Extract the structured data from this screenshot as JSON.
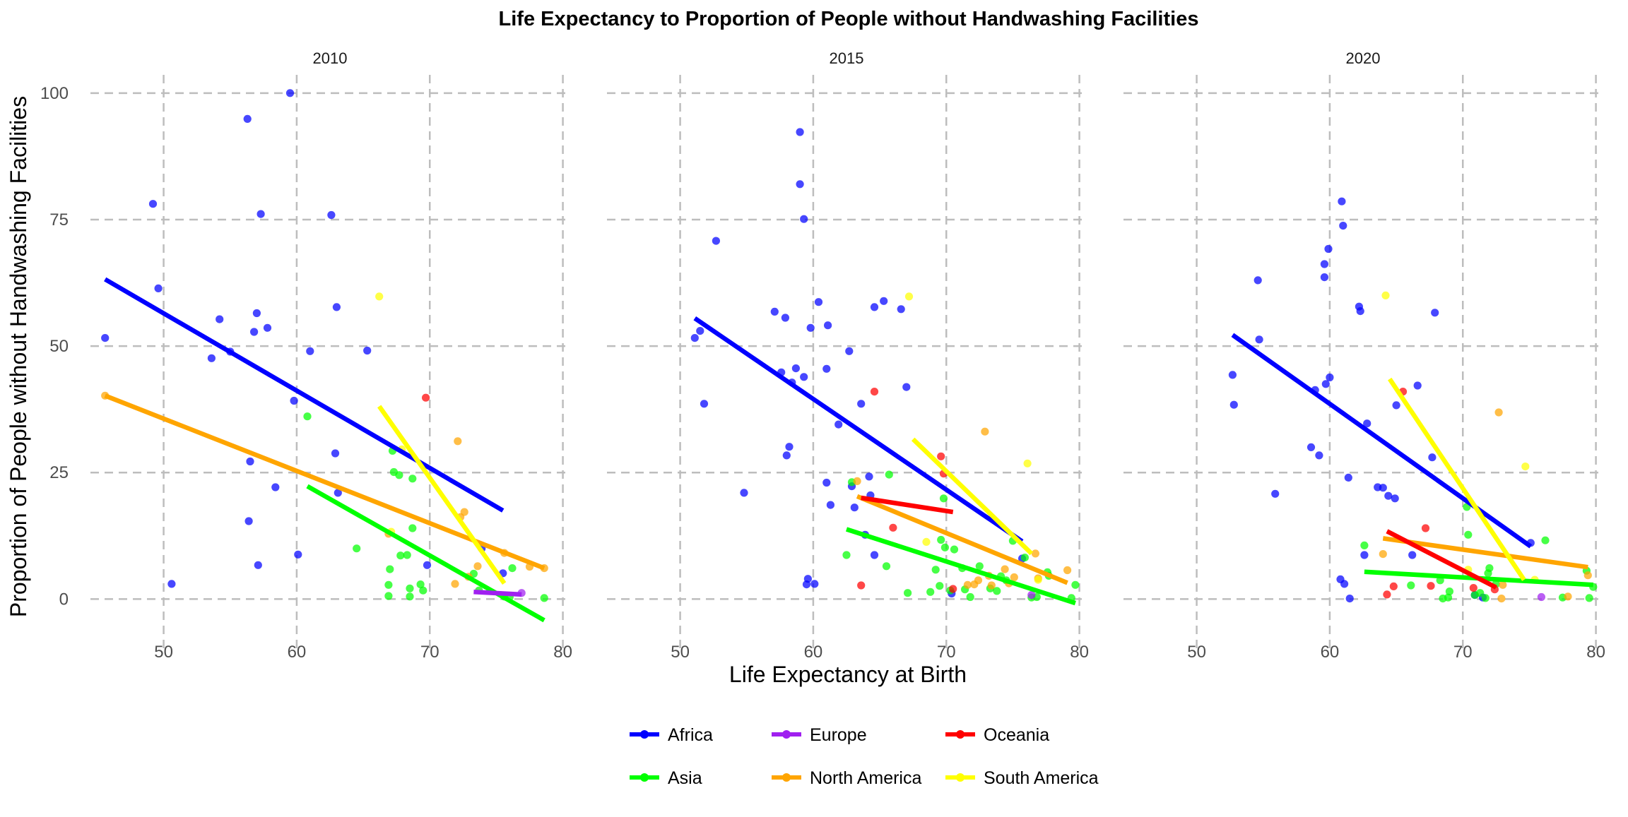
{
  "chart_data": {
    "type": "scatter",
    "title": "Life Expectancy to Proportion of People without Handwashing Facilities",
    "xlabel": "Life Expectancy at Birth",
    "ylabel": "Proportion of People without Handwashing Facilities",
    "xlim": [
      44.5,
      80.5
    ],
    "ylim": [
      -10,
      105
    ],
    "x_ticks": [
      50,
      60,
      70,
      80
    ],
    "y_ticks": [
      0,
      25,
      50,
      75,
      100
    ],
    "grid": true,
    "legend_position": "bottom",
    "colors": {
      "Africa": "#0000ff",
      "Asia": "#00ff00",
      "Europe": "#a020f0",
      "North America": "#ffa500",
      "Oceania": "#ff0000",
      "South America": "#ffff00"
    },
    "legend": [
      "Africa",
      "Europe",
      "Oceania",
      "Asia",
      "North America",
      "South America"
    ],
    "facets": [
      {
        "label": "2010",
        "points": {
          "Africa": [
            [
              45.6,
              51.6
            ],
            [
              49.2,
              78.1
            ],
            [
              49.6,
              61.4
            ],
            [
              50.6,
              3.0
            ],
            [
              53.6,
              47.6
            ],
            [
              54.2,
              55.3
            ],
            [
              55.0,
              48.9
            ],
            [
              56.3,
              94.9
            ],
            [
              56.4,
              15.4
            ],
            [
              56.5,
              27.2
            ],
            [
              56.8,
              52.8
            ],
            [
              57.0,
              56.5
            ],
            [
              57.1,
              6.7
            ],
            [
              57.3,
              76.1
            ],
            [
              57.8,
              53.6
            ],
            [
              58.4,
              22.1
            ],
            [
              59.5,
              100.0
            ],
            [
              59.8,
              39.2
            ],
            [
              60.1,
              8.8
            ],
            [
              61.0,
              49.0
            ],
            [
              62.6,
              75.9
            ],
            [
              62.9,
              28.8
            ],
            [
              63.0,
              57.7
            ],
            [
              63.1,
              21.0
            ],
            [
              65.3,
              49.1
            ],
            [
              69.8,
              6.7
            ],
            [
              75.5,
              5.1
            ],
            [
              73.9,
              10.0
            ]
          ],
          "Asia": [
            [
              60.8,
              36.1
            ],
            [
              64.5,
              10.0
            ],
            [
              66.9,
              0.6
            ],
            [
              66.9,
              2.8
            ],
            [
              67.0,
              5.9
            ],
            [
              67.2,
              29.3
            ],
            [
              67.3,
              25.1
            ],
            [
              67.7,
              24.5
            ],
            [
              67.8,
              8.6
            ],
            [
              68.3,
              8.7
            ],
            [
              68.5,
              2.1
            ],
            [
              68.5,
              0.5
            ],
            [
              68.7,
              23.8
            ],
            [
              68.7,
              14.0
            ],
            [
              69.3,
              2.9
            ],
            [
              69.5,
              1.7
            ],
            [
              73.3,
              5.0
            ],
            [
              73.7,
              1.7
            ],
            [
              75.6,
              0.5
            ],
            [
              76.0,
              0.4
            ],
            [
              76.2,
              6.1
            ],
            [
              78.6,
              0.2
            ]
          ],
          "Europe": [
            [
              76.9,
              1.2
            ]
          ],
          "North America": [
            [
              45.6,
              40.2
            ],
            [
              66.9,
              12.9
            ],
            [
              71.9,
              3.0
            ],
            [
              72.1,
              31.2
            ],
            [
              72.3,
              16.2
            ],
            [
              72.6,
              17.2
            ],
            [
              72.9,
              4.4
            ],
            [
              73.6,
              6.5
            ],
            [
              75.6,
              9.1
            ],
            [
              77.5,
              6.4
            ],
            [
              78.6,
              6.1
            ]
          ],
          "Oceania": [
            [
              69.7,
              39.8
            ]
          ],
          "South America": [
            [
              66.2,
              59.8
            ],
            [
              67.1,
              13.3
            ],
            [
              67.9,
              29.6
            ]
          ]
        },
        "lines": {
          "Africa": [
            [
              45.6,
              63.2
            ],
            [
              75.5,
              17.5
            ]
          ],
          "Asia": [
            [
              60.8,
              22.3
            ],
            [
              78.6,
              -4.2
            ]
          ],
          "Europe": [
            [
              73.3,
              1.4
            ],
            [
              76.9,
              0.9
            ]
          ],
          "North America": [
            [
              45.6,
              40.2
            ],
            [
              78.6,
              6.1
            ]
          ],
          "South America": [
            [
              66.2,
              38.1
            ],
            [
              75.6,
              3.1
            ]
          ]
        }
      },
      {
        "label": "2015",
        "points": {
          "Africa": [
            [
              51.1,
              51.6
            ],
            [
              51.5,
              53.0
            ],
            [
              51.8,
              38.6
            ],
            [
              52.7,
              70.8
            ],
            [
              54.8,
              21.0
            ],
            [
              57.1,
              56.8
            ],
            [
              57.6,
              44.8
            ],
            [
              57.9,
              55.6
            ],
            [
              58.0,
              28.4
            ],
            [
              58.2,
              30.1
            ],
            [
              58.4,
              42.8
            ],
            [
              58.7,
              45.6
            ],
            [
              59.0,
              92.3
            ],
            [
              59.0,
              82.0
            ],
            [
              59.3,
              43.9
            ],
            [
              59.3,
              75.1
            ],
            [
              59.5,
              2.9
            ],
            [
              59.6,
              4.0
            ],
            [
              59.8,
              53.6
            ],
            [
              60.1,
              3.0
            ],
            [
              60.4,
              58.7
            ],
            [
              61.0,
              23.0
            ],
            [
              61.0,
              45.5
            ],
            [
              61.1,
              54.1
            ],
            [
              61.3,
              18.6
            ],
            [
              61.9,
              34.5
            ],
            [
              62.7,
              49.0
            ],
            [
              62.9,
              22.3
            ],
            [
              63.1,
              18.1
            ],
            [
              63.6,
              38.6
            ],
            [
              63.9,
              12.7
            ],
            [
              64.2,
              24.2
            ],
            [
              64.3,
              20.5
            ],
            [
              64.6,
              57.7
            ],
            [
              64.6,
              8.7
            ],
            [
              65.3,
              58.9
            ],
            [
              66.6,
              57.3
            ],
            [
              67.0,
              41.9
            ],
            [
              70.4,
              1.1
            ],
            [
              75.7,
              8.0
            ]
          ],
          "Asia": [
            [
              62.5,
              8.7
            ],
            [
              62.9,
              23.1
            ],
            [
              65.5,
              6.5
            ],
            [
              65.7,
              24.6
            ],
            [
              67.1,
              1.2
            ],
            [
              68.8,
              1.4
            ],
            [
              69.2,
              5.8
            ],
            [
              69.5,
              2.6
            ],
            [
              69.6,
              11.7
            ],
            [
              69.8,
              19.9
            ],
            [
              69.9,
              10.2
            ],
            [
              70.3,
              1.7
            ],
            [
              70.6,
              9.8
            ],
            [
              71.2,
              6.1
            ],
            [
              71.4,
              1.9
            ],
            [
              71.8,
              0.4
            ],
            [
              72.5,
              6.5
            ],
            [
              73.3,
              2.1
            ],
            [
              73.8,
              1.6
            ],
            [
              74.1,
              4.5
            ],
            [
              74.5,
              3.7
            ],
            [
              75.0,
              11.5
            ],
            [
              75.9,
              8.2
            ],
            [
              76.4,
              0.3
            ],
            [
              76.8,
              0.4
            ],
            [
              77.6,
              5.3
            ],
            [
              77.7,
              4.6
            ],
            [
              79.4,
              0.2
            ],
            [
              79.7,
              2.8
            ]
          ],
          "Europe": [
            [
              76.4,
              0.8
            ]
          ],
          "North America": [
            [
              63.3,
              23.3
            ],
            [
              71.6,
              2.8
            ],
            [
              72.1,
              2.9
            ],
            [
              72.4,
              3.7
            ],
            [
              72.9,
              33.1
            ],
            [
              73.2,
              4.6
            ],
            [
              73.4,
              2.7
            ],
            [
              74.4,
              5.9
            ],
            [
              74.7,
              3.1
            ],
            [
              75.1,
              4.3
            ],
            [
              76.7,
              9.0
            ],
            [
              76.9,
              4.1
            ],
            [
              79.1,
              5.7
            ]
          ],
          "Oceania": [
            [
              63.6,
              2.7
            ],
            [
              64.6,
              41.0
            ],
            [
              66.0,
              14.1
            ],
            [
              69.6,
              28.2
            ],
            [
              69.8,
              24.8
            ],
            [
              70.5,
              2.0
            ]
          ],
          "South America": [
            [
              67.2,
              59.8
            ],
            [
              68.5,
              11.3
            ],
            [
              76.1,
              26.8
            ],
            [
              76.9,
              3.8
            ]
          ]
        },
        "lines": {
          "Africa": [
            [
              51.1,
              55.5
            ],
            [
              75.7,
              11.4
            ]
          ],
          "Asia": [
            [
              62.5,
              13.8
            ],
            [
              79.7,
              -0.8
            ]
          ],
          "North America": [
            [
              63.3,
              20.3
            ],
            [
              79.1,
              3.2
            ]
          ],
          "Oceania": [
            [
              63.6,
              20.0
            ],
            [
              70.5,
              17.2
            ]
          ],
          "South America": [
            [
              67.5,
              31.6
            ],
            [
              76.4,
              9.0
            ]
          ]
        }
      },
      {
        "label": "2020",
        "points": {
          "Africa": [
            [
              52.7,
              44.3
            ],
            [
              52.8,
              38.4
            ],
            [
              54.6,
              63.0
            ],
            [
              54.7,
              51.3
            ],
            [
              55.9,
              20.8
            ],
            [
              58.6,
              30.0
            ],
            [
              58.9,
              41.3
            ],
            [
              59.2,
              28.4
            ],
            [
              59.6,
              63.6
            ],
            [
              59.6,
              66.2
            ],
            [
              59.7,
              42.5
            ],
            [
              59.9,
              69.2
            ],
            [
              60.0,
              43.8
            ],
            [
              60.8,
              3.9
            ],
            [
              60.9,
              78.6
            ],
            [
              61.0,
              73.8
            ],
            [
              61.1,
              3.0
            ],
            [
              61.4,
              24.0
            ],
            [
              61.5,
              0.1
            ],
            [
              62.2,
              57.8
            ],
            [
              62.3,
              56.9
            ],
            [
              62.6,
              8.7
            ],
            [
              62.8,
              34.7
            ],
            [
              63.6,
              22.1
            ],
            [
              64.0,
              22.0
            ],
            [
              64.4,
              20.4
            ],
            [
              64.9,
              19.9
            ],
            [
              65.0,
              38.3
            ],
            [
              66.2,
              8.7
            ],
            [
              66.6,
              42.2
            ],
            [
              67.7,
              28.0
            ],
            [
              67.9,
              56.6
            ],
            [
              70.9,
              0.8
            ],
            [
              71.5,
              0.3
            ],
            [
              75.1,
              11.1
            ]
          ],
          "Asia": [
            [
              62.6,
              10.6
            ],
            [
              66.1,
              2.7
            ],
            [
              68.3,
              3.7
            ],
            [
              68.5,
              0.1
            ],
            [
              68.9,
              0.3
            ],
            [
              69.0,
              1.5
            ],
            [
              70.3,
              18.2
            ],
            [
              70.4,
              12.7
            ],
            [
              70.9,
              0.8
            ],
            [
              71.3,
              1.2
            ],
            [
              71.7,
              0.2
            ],
            [
              71.9,
              5.1
            ],
            [
              72.0,
              6.1
            ],
            [
              72.5,
              3.0
            ],
            [
              76.2,
              11.6
            ],
            [
              77.5,
              0.3
            ],
            [
              79.3,
              5.6
            ],
            [
              79.5,
              0.2
            ],
            [
              79.8,
              2.4
            ]
          ],
          "Europe": [
            [
              75.9,
              0.4
            ]
          ],
          "North America": [
            [
              64.0,
              8.9
            ],
            [
              72.7,
              36.9
            ],
            [
              72.9,
              0.1
            ],
            [
              73.0,
              2.8
            ],
            [
              77.9,
              0.5
            ],
            [
              79.4,
              4.7
            ]
          ],
          "Oceania": [
            [
              64.3,
              0.9
            ],
            [
              64.8,
              2.5
            ],
            [
              65.5,
              41.0
            ],
            [
              67.2,
              14.0
            ],
            [
              67.6,
              2.6
            ],
            [
              70.8,
              2.2
            ],
            [
              72.4,
              1.9
            ]
          ],
          "South America": [
            [
              64.2,
              60.0
            ],
            [
              70.4,
              5.8
            ],
            [
              74.7,
              26.2
            ],
            [
              75.4,
              3.8
            ]
          ]
        },
        "lines": {
          "Africa": [
            [
              52.7,
              52.2
            ],
            [
              75.1,
              10.4
            ]
          ],
          "Asia": [
            [
              62.6,
              5.4
            ],
            [
              79.8,
              2.8
            ]
          ],
          "North America": [
            [
              64.0,
              12.0
            ],
            [
              79.4,
              6.3
            ]
          ],
          "Oceania": [
            [
              64.3,
              13.4
            ],
            [
              72.5,
              2.3
            ]
          ],
          "South America": [
            [
              64.5,
              43.5
            ],
            [
              74.6,
              3.8
            ]
          ]
        }
      }
    ]
  }
}
